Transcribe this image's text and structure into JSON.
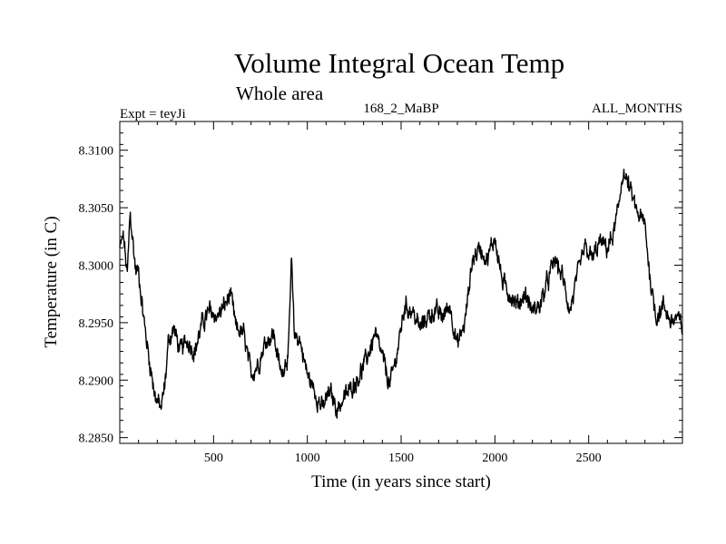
{
  "chart_data": {
    "type": "line",
    "title": "Volume Integral Ocean Temp",
    "subtitle": "Whole area",
    "header_left": "Expt = teyJi",
    "header_center": "168_2_MaBP",
    "header_right": "ALL_MONTHS",
    "xlabel": "Time (in years since start)",
    "ylabel": "Temperature (in C)",
    "xlim": [
      0,
      3000
    ],
    "ylim": [
      8.2845,
      8.3125
    ],
    "x_ticks": [
      500,
      1000,
      1500,
      2000,
      2500
    ],
    "x_tick_labels": [
      "500",
      "1000",
      "1500",
      "2000",
      "2500"
    ],
    "y_ticks": [
      8.285,
      8.29,
      8.295,
      8.3,
      8.305,
      8.31
    ],
    "y_tick_labels": [
      "8.2850",
      "8.2900",
      "8.2950",
      "8.3000",
      "8.3050",
      "8.3100"
    ],
    "grid": false,
    "line_color": "#000000",
    "series": [
      {
        "name": "Volume Integral Ocean Temp",
        "x": [
          0,
          20,
          40,
          55,
          70,
          85,
          100,
          130,
          160,
          190,
          220,
          240,
          260,
          290,
          320,
          360,
          400,
          440,
          480,
          520,
          560,
          590,
          620,
          660,
          700,
          740,
          780,
          820,
          860,
          900,
          915,
          930,
          960,
          1000,
          1040,
          1080,
          1120,
          1160,
          1200,
          1240,
          1280,
          1320,
          1360,
          1400,
          1440,
          1480,
          1520,
          1560,
          1600,
          1640,
          1680,
          1720,
          1760,
          1800,
          1840,
          1880,
          1920,
          1960,
          2000,
          2040,
          2080,
          2120,
          2160,
          2200,
          2240,
          2280,
          2320,
          2360,
          2400,
          2440,
          2480,
          2520,
          2560,
          2600,
          2630,
          2660,
          2680,
          2700,
          2720,
          2760,
          2800,
          2830,
          2860,
          2900,
          2940,
          2970,
          3000
        ],
        "values": [
          8.3015,
          8.3025,
          8.299,
          8.3045,
          8.302,
          8.2995,
          8.2995,
          8.295,
          8.2915,
          8.2885,
          8.2875,
          8.2895,
          8.2935,
          8.2945,
          8.2925,
          8.2935,
          8.2925,
          8.295,
          8.296,
          8.2955,
          8.2965,
          8.2975,
          8.2945,
          8.294,
          8.2905,
          8.2915,
          8.2935,
          8.294,
          8.2905,
          8.2925,
          8.3005,
          8.294,
          8.2935,
          8.2905,
          8.289,
          8.2875,
          8.289,
          8.2875,
          8.2885,
          8.2895,
          8.2905,
          8.292,
          8.294,
          8.292,
          8.2895,
          8.2925,
          8.2965,
          8.296,
          8.2945,
          8.2955,
          8.296,
          8.2955,
          8.2965,
          8.293,
          8.295,
          8.3005,
          8.3015,
          8.3005,
          8.3025,
          8.2985,
          8.2975,
          8.2965,
          8.2975,
          8.296,
          8.2965,
          8.2985,
          8.3005,
          8.299,
          8.296,
          8.299,
          8.3015,
          8.3005,
          8.302,
          8.3015,
          8.3025,
          8.305,
          8.308,
          8.3075,
          8.3065,
          8.3045,
          8.3035,
          8.2985,
          8.2955,
          8.2965,
          8.295,
          8.2955,
          8.2945
        ]
      }
    ]
  }
}
